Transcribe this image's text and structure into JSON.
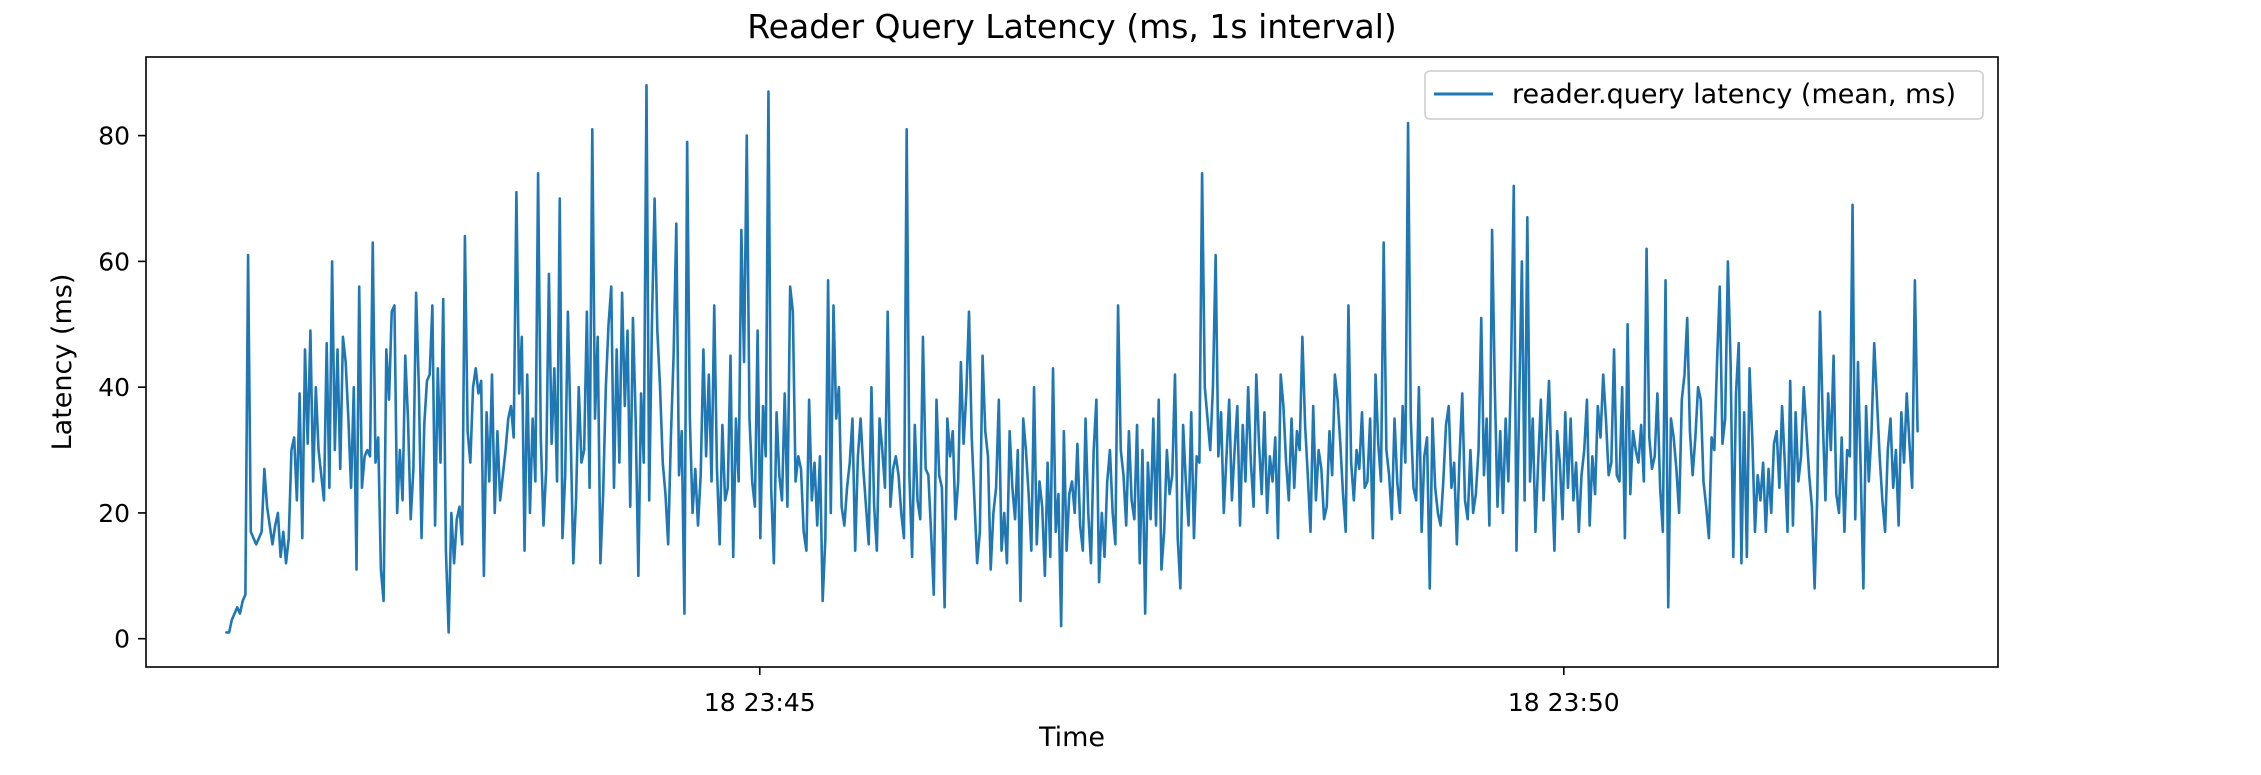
{
  "chart_data": {
    "type": "line",
    "title": "Reader Query Latency (ms, 1s interval)",
    "xlabel": "Time",
    "ylabel": "Latency (ms)",
    "x_start": "18 23:41:41",
    "x_end": "18 23:52:12",
    "xlim": [
      "18 23:41:11",
      "18 23:52:42"
    ],
    "ylim": [
      -4.5,
      92.5
    ],
    "yticks": [
      0,
      20,
      40,
      60,
      80
    ],
    "xticks": [
      {
        "time": "18 23:45:00",
        "label": "18 23:45"
      },
      {
        "time": "18 23:50:00",
        "label": "18 23:50"
      }
    ],
    "grid": false,
    "legend_position": "upper right",
    "series": [
      {
        "name": "reader.query latency (mean, ms)",
        "color": "#1f77b4",
        "values": [
          1,
          1,
          3,
          4,
          5,
          4,
          6,
          7,
          61,
          17,
          16,
          15,
          16,
          17,
          27,
          21,
          18,
          15,
          18,
          20,
          13,
          17,
          12,
          16,
          30,
          32,
          22,
          39,
          16,
          46,
          31,
          49,
          25,
          40,
          30,
          26,
          22,
          47,
          24,
          60,
          30,
          46,
          27,
          48,
          44,
          35,
          24,
          40,
          11,
          56,
          24,
          29,
          30,
          29,
          63,
          28,
          32,
          11,
          6,
          46,
          38,
          52,
          53,
          20,
          30,
          22,
          45,
          35,
          19,
          27,
          55,
          40,
          16,
          34,
          41,
          42,
          53,
          18,
          43,
          28,
          54,
          14,
          1,
          20,
          12,
          19,
          21,
          15,
          64,
          33,
          28,
          40,
          43,
          39,
          41,
          10,
          36,
          25,
          42,
          20,
          33,
          22,
          26,
          30,
          35,
          37,
          32,
          71,
          39,
          48,
          14,
          42,
          20,
          35,
          25,
          74,
          32,
          18,
          27,
          58,
          31,
          43,
          25,
          70,
          16,
          26,
          52,
          33,
          12,
          22,
          40,
          28,
          30,
          52,
          24,
          81,
          35,
          48,
          12,
          23,
          40,
          50,
          56,
          24,
          46,
          28,
          55,
          37,
          49,
          21,
          51,
          35,
          10,
          39,
          28,
          88,
          22,
          50,
          70,
          49,
          40,
          28,
          23,
          15,
          32,
          45,
          66,
          26,
          33,
          4,
          79,
          35,
          20,
          27,
          18,
          26,
          46,
          29,
          42,
          25,
          53,
          27,
          15,
          34,
          22,
          24,
          45,
          13,
          35,
          25,
          65,
          44,
          80,
          35,
          25,
          21,
          49,
          16,
          37,
          29,
          87,
          24,
          12,
          36,
          26,
          22,
          39,
          21,
          56,
          52,
          25,
          29,
          27,
          17,
          14,
          38,
          22,
          28,
          18,
          29,
          6,
          16,
          57,
          20,
          53,
          35,
          40,
          21,
          18,
          24,
          28,
          35,
          14,
          29,
          35,
          27,
          21,
          15,
          40,
          21,
          14,
          35,
          30,
          24,
          52,
          21,
          27,
          29,
          26,
          20,
          16,
          81,
          26,
          13,
          34,
          22,
          19,
          48,
          27,
          26,
          17,
          7,
          38,
          26,
          24,
          5,
          35,
          29,
          33,
          19,
          25,
          44,
          31,
          39,
          52,
          32,
          22,
          12,
          17,
          45,
          33,
          29,
          11,
          20,
          24,
          38,
          14,
          20,
          12,
          33,
          24,
          19,
          30,
          6,
          35,
          30,
          23,
          14,
          40,
          15,
          25,
          21,
          10,
          28,
          13,
          43,
          17,
          23,
          2,
          33,
          14,
          23,
          25,
          20,
          31,
          18,
          14,
          35,
          20,
          12,
          30,
          38,
          9,
          20,
          13,
          25,
          30,
          20,
          15,
          53,
          30,
          26,
          18,
          33,
          22,
          19,
          34,
          12,
          30,
          4,
          28,
          19,
          35,
          18,
          38,
          11,
          17,
          30,
          23,
          26,
          42,
          16,
          8,
          34,
          25,
          18,
          36,
          16,
          29,
          28,
          74,
          40,
          35,
          30,
          40,
          61,
          29,
          36,
          20,
          29,
          38,
          22,
          30,
          37,
          18,
          34,
          25,
          40,
          28,
          21,
          42,
          31,
          23,
          36,
          20,
          29,
          25,
          32,
          16,
          42,
          37,
          28,
          22,
          35,
          24,
          33,
          30,
          48,
          34,
          26,
          17,
          37,
          22,
          30,
          27,
          19,
          21,
          33,
          26,
          42,
          38,
          31,
          23,
          17,
          53,
          28,
          22,
          30,
          27,
          36,
          24,
          25,
          35,
          16,
          42,
          31,
          25,
          63,
          30,
          26,
          19,
          35,
          25,
          20,
          37,
          28,
          82,
          35,
          24,
          22,
          40,
          17,
          29,
          32,
          8,
          35,
          24,
          20,
          18,
          25,
          34,
          37,
          24,
          28,
          15,
          29,
          39,
          22,
          19,
          30,
          20,
          23,
          30,
          51,
          26,
          35,
          18,
          65,
          40,
          21,
          33,
          20,
          35,
          25,
          43,
          72,
          14,
          38,
          60,
          22,
          67,
          25,
          35,
          17,
          28,
          38,
          22,
          32,
          41,
          26,
          14,
          33,
          28,
          19,
          36,
          24,
          35,
          22,
          28,
          17,
          26,
          30,
          38,
          18,
          29,
          23,
          37,
          32,
          42,
          35,
          26,
          28,
          46,
          26,
          25,
          40,
          16,
          50,
          23,
          33,
          30,
          28,
          34,
          25,
          62,
          32,
          27,
          29,
          39,
          24,
          17,
          57,
          5,
          35,
          32,
          27,
          20,
          38,
          42,
          51,
          33,
          26,
          32,
          40,
          38,
          25,
          21,
          16,
          32,
          30,
          44,
          56,
          31,
          35,
          60,
          44,
          13,
          39,
          47,
          12,
          36,
          13,
          43,
          32,
          17,
          26,
          22,
          28,
          17,
          27,
          20,
          31,
          33,
          24,
          37,
          28,
          17,
          41,
          18,
          36,
          25,
          29,
          40,
          33,
          26,
          21,
          8,
          23,
          52,
          35,
          22,
          39,
          30,
          45,
          23,
          20,
          32,
          17,
          30,
          29,
          69,
          19,
          44,
          27,
          8,
          37,
          25,
          33,
          47,
          38,
          29,
          22,
          17,
          30,
          35,
          24,
          30,
          18,
          36,
          28,
          39,
          31,
          24,
          57,
          33
        ]
      }
    ]
  }
}
